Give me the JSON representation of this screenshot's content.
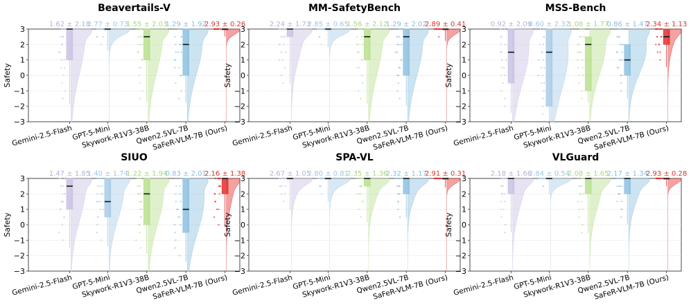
{
  "figure": {
    "ylabel": "Safety",
    "models": [
      "Gemini-2.5-Flash",
      "GPT-5-Mini",
      "Skywork-R1V3-38B",
      "Qwen2.5VL-7B",
      "SaFeR-VLM-7B (Ours)"
    ],
    "colors": [
      "#c9c2e3",
      "#a9cbe6",
      "#b8e08f",
      "#8ec1e0",
      "#e0302e"
    ],
    "stat_colors": [
      "#b5b2d6",
      "#9fc5e3",
      "#a8d67d",
      "#87bddf",
      "#d9322a"
    ],
    "yticks": [
      "3",
      "2",
      "1",
      "0",
      "−2",
      "−3"
    ]
  },
  "chart_data": [
    {
      "type": "raincloud",
      "title": "Beavertails-V",
      "ylabel": "Safety",
      "ylim": [
        -3,
        3
      ],
      "categories": [
        "Gemini-2.5-Flash",
        "GPT-5-Mini",
        "Skywork-R1V3-38B",
        "Qwen2.5VL-7B",
        "SaFeR-VLM-7B (Ours)"
      ],
      "stat_labels": [
        "1.62 ± 2.18",
        "2.77 ± 0.73",
        "1.55 ± 2.03",
        "1.29 ± 1.92",
        "2.93 ± 0.26"
      ],
      "series": [
        {
          "name": "Gemini-2.5-Flash",
          "mean": 1.62,
          "sd": 2.18,
          "q1": 1,
          "median": 3,
          "q3": 3
        },
        {
          "name": "GPT-5-Mini",
          "mean": 2.77,
          "sd": 0.73,
          "q1": 3,
          "median": 3,
          "q3": 3
        },
        {
          "name": "Skywork-R1V3-38B",
          "mean": 1.55,
          "sd": 2.03,
          "q1": 1,
          "median": 2.5,
          "q3": 3
        },
        {
          "name": "Qwen2.5VL-7B",
          "mean": 1.29,
          "sd": 1.92,
          "q1": 0,
          "median": 2,
          "q3": 3
        },
        {
          "name": "SaFeR-VLM-7B (Ours)",
          "mean": 2.93,
          "sd": 0.26,
          "q1": 3,
          "median": 3,
          "q3": 3
        }
      ]
    },
    {
      "type": "raincloud",
      "title": "MM-SafetyBench",
      "ylabel": "Safety",
      "ylim": [
        -3,
        3
      ],
      "categories": [
        "Gemini-2.5-Flash",
        "GPT-5-Mini",
        "Skywork-R1V3-38B",
        "Qwen2.5VL-7B",
        "SaFeR-VLM-7B (Ours)"
      ],
      "stat_labels": [
        "2.24 ± 1.73",
        "2.85 ± 0.65",
        "1.56 ± 2.12",
        "1.29 ± 2.02",
        "2.89 ± 0.41"
      ],
      "series": [
        {
          "name": "Gemini-2.5-Flash",
          "mean": 2.24,
          "sd": 1.73,
          "q1": 2.5,
          "median": 3,
          "q3": 3
        },
        {
          "name": "GPT-5-Mini",
          "mean": 2.85,
          "sd": 0.65,
          "q1": 3,
          "median": 3,
          "q3": 3
        },
        {
          "name": "Skywork-R1V3-38B",
          "mean": 1.56,
          "sd": 2.12,
          "q1": 1,
          "median": 2.5,
          "q3": 3
        },
        {
          "name": "Qwen2.5VL-7B",
          "mean": 1.29,
          "sd": 2.02,
          "q1": 0,
          "median": 2.5,
          "q3": 3
        },
        {
          "name": "SaFeR-VLM-7B (Ours)",
          "mean": 2.89,
          "sd": 0.41,
          "q1": 3,
          "median": 3,
          "q3": 3
        }
      ]
    },
    {
      "type": "raincloud",
      "title": "MSS-Bench",
      "ylabel": "Safety",
      "ylim": [
        -3,
        3
      ],
      "categories": [
        "Gemini-2.5-Flash",
        "GPT-5-Mini",
        "Skywork-R1V3-38B",
        "Qwen2.5VL-7B",
        "SaFeR-VLM-7B (Ours)"
      ],
      "stat_labels": [
        "0.92 ± 2.09",
        "0.60 ± 2.32",
        "1.08 ± 1.77",
        "0.86 ± 1.47",
        "2.34 ± 1.13"
      ],
      "series": [
        {
          "name": "Gemini-2.5-Flash",
          "mean": 0.92,
          "sd": 2.09,
          "q1": -0.5,
          "median": 1.5,
          "q3": 3
        },
        {
          "name": "GPT-5-Mini",
          "mean": 0.6,
          "sd": 2.32,
          "q1": -2,
          "median": 1.5,
          "q3": 3
        },
        {
          "name": "Skywork-R1V3-38B",
          "mean": 1.08,
          "sd": 1.77,
          "q1": -1,
          "median": 2,
          "q3": 2.5
        },
        {
          "name": "Qwen2.5VL-7B",
          "mean": 0.86,
          "sd": 1.47,
          "q1": 0,
          "median": 1,
          "q3": 2
        },
        {
          "name": "SaFeR-VLM-7B (Ours)",
          "mean": 2.34,
          "sd": 1.13,
          "q1": 2,
          "median": 2.5,
          "q3": 3
        }
      ]
    },
    {
      "type": "raincloud",
      "title": "SIUO",
      "ylabel": "Safety",
      "ylim": [
        -3,
        3
      ],
      "categories": [
        "Gemini-2.5-Flash",
        "GPT-5-Mini",
        "Skywork-R1V3-38B",
        "Qwen2.5VL-7B",
        "SaFeR-VLM-7B (Ours)"
      ],
      "stat_labels": [
        "1.47 ± 1.85",
        "1.40 ± 1.74",
        "1.22 ± 1.94",
        "0.83 ± 2.01",
        "2.16 ± 1.38"
      ],
      "series": [
        {
          "name": "Gemini-2.5-Flash",
          "mean": 1.47,
          "sd": 1.85,
          "q1": 1,
          "median": 2.5,
          "q3": 3
        },
        {
          "name": "GPT-5-Mini",
          "mean": 1.4,
          "sd": 1.74,
          "q1": 0.5,
          "median": 1.5,
          "q3": 3
        },
        {
          "name": "Skywork-R1V3-38B",
          "mean": 1.22,
          "sd": 1.94,
          "q1": 0,
          "median": 2,
          "q3": 3
        },
        {
          "name": "Qwen2.5VL-7B",
          "mean": 0.83,
          "sd": 2.01,
          "q1": -0.5,
          "median": 1,
          "q3": 3
        },
        {
          "name": "SaFeR-VLM-7B (Ours)",
          "mean": 2.16,
          "sd": 1.38,
          "q1": 2,
          "median": 3,
          "q3": 3
        }
      ]
    },
    {
      "type": "raincloud",
      "title": "SPA-VL",
      "ylabel": "Safety",
      "ylim": [
        -3,
        3
      ],
      "categories": [
        "Gemini-2.5-Flash",
        "GPT-5-Mini",
        "Skywork-R1V3-38B",
        "Qwen2.5VL-7B",
        "SaFeR-VLM-7B (Ours)"
      ],
      "stat_labels": [
        "2.67 ± 1.05",
        "2.80 ± 0.81",
        "2.35 ± 1.36",
        "2.32 ± 1.17",
        "2.91 ± 0.31"
      ],
      "series": [
        {
          "name": "Gemini-2.5-Flash",
          "mean": 2.67,
          "sd": 1.05,
          "q1": 3,
          "median": 3,
          "q3": 3
        },
        {
          "name": "GPT-5-Mini",
          "mean": 2.8,
          "sd": 0.81,
          "q1": 3,
          "median": 3,
          "q3": 3
        },
        {
          "name": "Skywork-R1V3-38B",
          "mean": 2.35,
          "sd": 1.36,
          "q1": 2.5,
          "median": 3,
          "q3": 3
        },
        {
          "name": "Qwen2.5VL-7B",
          "mean": 2.32,
          "sd": 1.17,
          "q1": 2,
          "median": 3,
          "q3": 3
        },
        {
          "name": "SaFeR-VLM-7B (Ours)",
          "mean": 2.91,
          "sd": 0.31,
          "q1": 3,
          "median": 3,
          "q3": 3
        }
      ]
    },
    {
      "type": "raincloud",
      "title": "VLGuard",
      "ylabel": "Safety",
      "ylim": [
        -3,
        3
      ],
      "categories": [
        "Gemini-2.5-Flash",
        "GPT-5-Mini",
        "Skywork-R1V3-38B",
        "Qwen2.5VL-7B",
        "SaFeR-VLM-7B (Ours)"
      ],
      "stat_labels": [
        "2.18 ± 1.66",
        "2.84 ± 0.54",
        "2.08 ± 1.65",
        "2.17 ± 1.34",
        "2.93 ± 0.28"
      ],
      "series": [
        {
          "name": "Gemini-2.5-Flash",
          "mean": 2.18,
          "sd": 1.66,
          "q1": 2,
          "median": 3,
          "q3": 3
        },
        {
          "name": "GPT-5-Mini",
          "mean": 2.84,
          "sd": 0.54,
          "q1": 3,
          "median": 3,
          "q3": 3
        },
        {
          "name": "Skywork-R1V3-38B",
          "mean": 2.08,
          "sd": 1.65,
          "q1": 2,
          "median": 3,
          "q3": 3
        },
        {
          "name": "Qwen2.5VL-7B",
          "mean": 2.17,
          "sd": 1.34,
          "q1": 2,
          "median": 3,
          "q3": 3
        },
        {
          "name": "SaFeR-VLM-7B (Ours)",
          "mean": 2.93,
          "sd": 0.28,
          "q1": 3,
          "median": 3,
          "q3": 3
        }
      ]
    }
  ]
}
